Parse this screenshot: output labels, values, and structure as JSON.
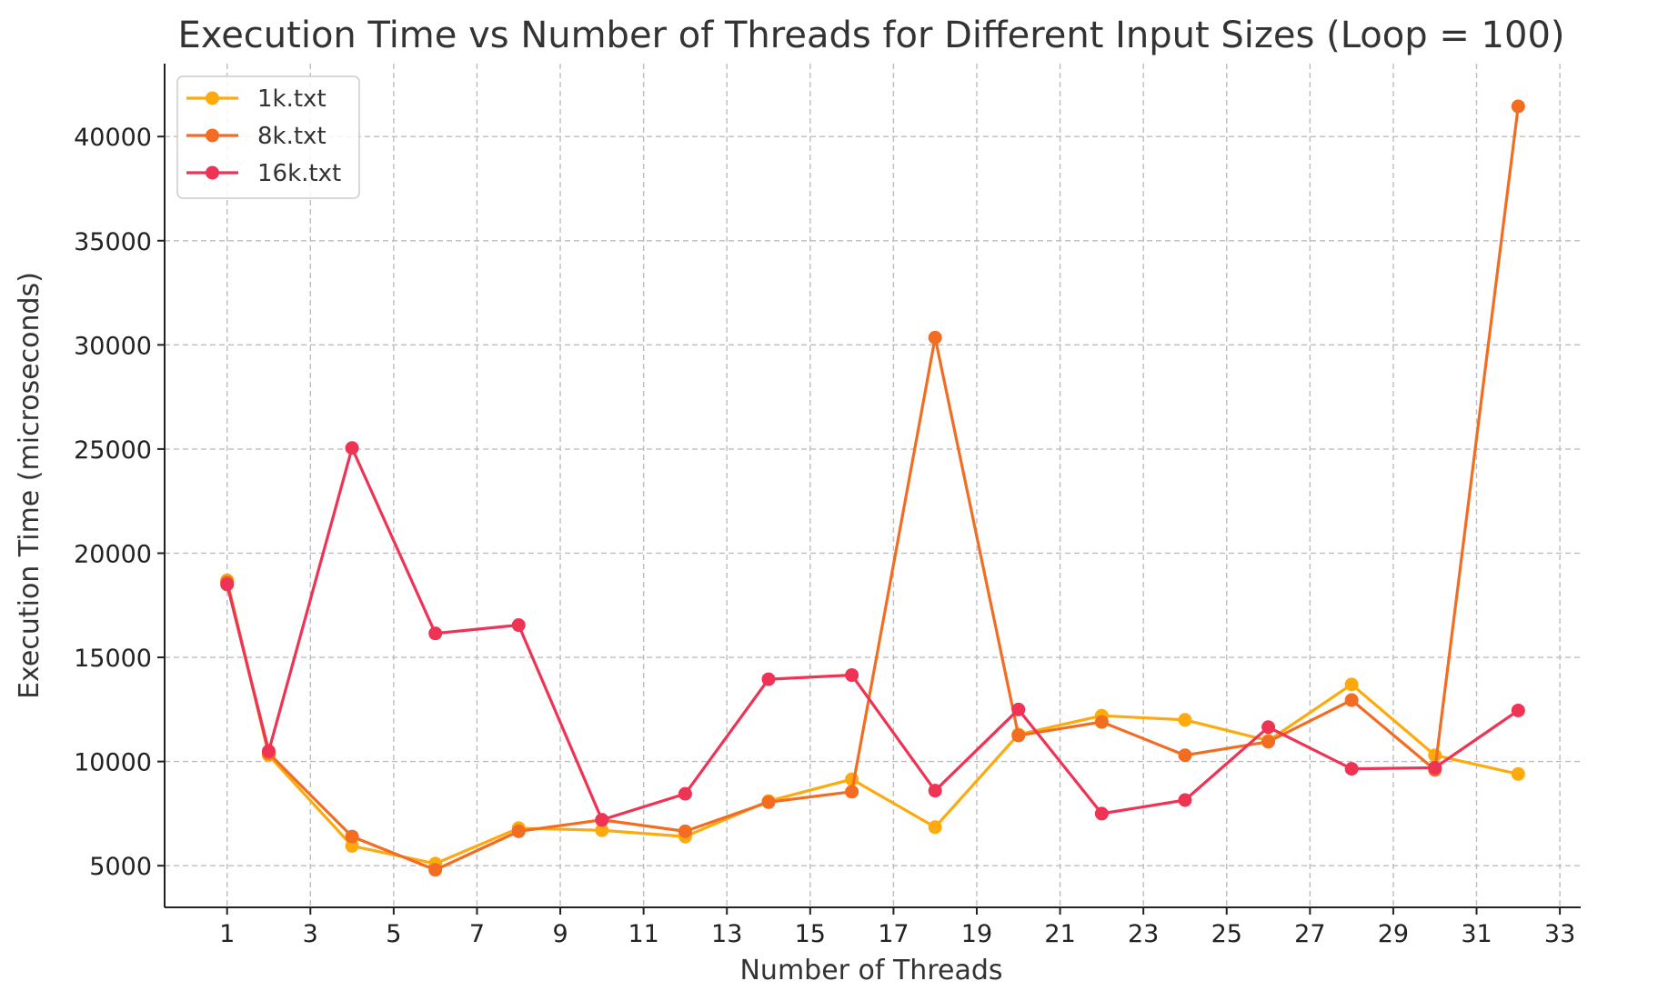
{
  "chart_data": {
    "type": "line",
    "title": "Execution Time vs Number of Threads for Different Input Sizes (Loop = 100)",
    "xlabel": "Number of Threads",
    "ylabel": "Execution Time (microseconds)",
    "x": [
      1,
      2,
      4,
      6,
      8,
      10,
      12,
      14,
      16,
      18,
      20,
      22,
      24,
      26,
      28,
      30,
      32
    ],
    "xlim": [
      -0.5,
      33.5
    ],
    "ylim": [
      3000,
      43500
    ],
    "xticks": [
      "1",
      "3",
      "5",
      "7",
      "9",
      "11",
      "13",
      "15",
      "17",
      "19",
      "21",
      "23",
      "25",
      "27",
      "29",
      "31",
      "33"
    ],
    "yticks": [
      "5000",
      "10000",
      "15000",
      "20000",
      "25000",
      "30000",
      "35000",
      "40000"
    ],
    "grid": true,
    "legend_position": "top-left",
    "series": [
      {
        "name": "1k.txt",
        "color": "#FDAA0F",
        "values": [
          18700,
          10300,
          5950,
          5100,
          6800,
          6700,
          6400,
          8100,
          9150,
          6850,
          11300,
          12200,
          12000,
          11000,
          13700,
          10300,
          9400
        ]
      },
      {
        "name": "8k.txt",
        "color": "#F26C22",
        "values": [
          18600,
          10400,
          6400,
          4800,
          6650,
          7200,
          6650,
          8050,
          8550,
          30350,
          11250,
          11900,
          10300,
          10950,
          12950,
          9600,
          41450
        ]
      },
      {
        "name": "16k.txt",
        "color": "#EE3354",
        "values": [
          18500,
          10500,
          25050,
          16150,
          16550,
          7200,
          8450,
          13950,
          14150,
          8600,
          12500,
          7500,
          8150,
          11650,
          9650,
          9700,
          12450
        ]
      }
    ]
  }
}
